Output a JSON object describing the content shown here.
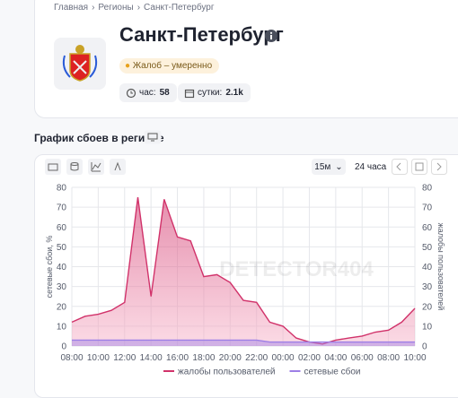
{
  "breadcrumb": [
    "Главная",
    "Регионы",
    "Санкт-Петербург"
  ],
  "header": {
    "title": "Санкт-Петербург",
    "status": "Жалоб – умеренно",
    "stats": [
      {
        "label": "час:",
        "value": "58"
      },
      {
        "label": "сутки:",
        "value": "2.1k"
      }
    ]
  },
  "section_title": "График сбоев в регионе",
  "toolbar": {
    "interval": "15м",
    "period": "24 часа"
  },
  "chart_data": {
    "type": "line",
    "x": [
      0,
      1,
      2,
      3,
      4,
      5,
      6,
      7,
      8,
      9,
      10,
      11,
      12,
      13,
      14,
      15,
      16,
      17,
      18,
      19,
      20,
      21,
      22,
      23,
      24,
      25,
      26
    ],
    "xlim": [
      0,
      26
    ],
    "xticks": [
      {
        "value": 0,
        "label": "08:00"
      },
      {
        "value": 2,
        "label": "10:00"
      },
      {
        "value": 4,
        "label": "12:00"
      },
      {
        "value": 6,
        "label": "14:00"
      },
      {
        "value": 8,
        "label": "16:00"
      },
      {
        "value": 10,
        "label": "18:00"
      },
      {
        "value": 12,
        "label": "20:00"
      },
      {
        "value": 14,
        "label": "22:00"
      },
      {
        "value": 16,
        "label": "00:00"
      },
      {
        "value": 18,
        "label": "02:00"
      },
      {
        "value": 20,
        "label": "04:00"
      },
      {
        "value": 22,
        "label": "06:00"
      },
      {
        "value": 24,
        "label": "08:00"
      },
      {
        "value": 26,
        "label": "10:00"
      }
    ],
    "ylim": [
      0,
      80
    ],
    "yticks": [
      0,
      10,
      20,
      30,
      40,
      50,
      60,
      70,
      80
    ],
    "y2lim": [
      0,
      80
    ],
    "y2ticks": [
      0,
      10,
      20,
      30,
      40,
      50,
      60,
      70,
      80
    ],
    "ylabel": "сетевые сбои, %",
    "y2label": "жалобы пользователей",
    "watermark": "DETECTOR404",
    "grid": true,
    "legend": "bottom",
    "series": [
      {
        "name": "жалобы пользователей",
        "color": "#d1326a",
        "axis": "y2",
        "area": true,
        "values": [
          12,
          15,
          16,
          18,
          22,
          75,
          25,
          74,
          55,
          53,
          35,
          36,
          32,
          23,
          22,
          12,
          10,
          4,
          2,
          1,
          3,
          4,
          5,
          7,
          8,
          12,
          19
        ]
      },
      {
        "name": "сетевые сбои",
        "color": "#9d7fe6",
        "area": true,
        "values": [
          3,
          3,
          3,
          3,
          3,
          3,
          3,
          3,
          3,
          3,
          3,
          3,
          3,
          3,
          3,
          2,
          2,
          2,
          2,
          2,
          2,
          2,
          2,
          2,
          2,
          2,
          2
        ]
      }
    ]
  }
}
